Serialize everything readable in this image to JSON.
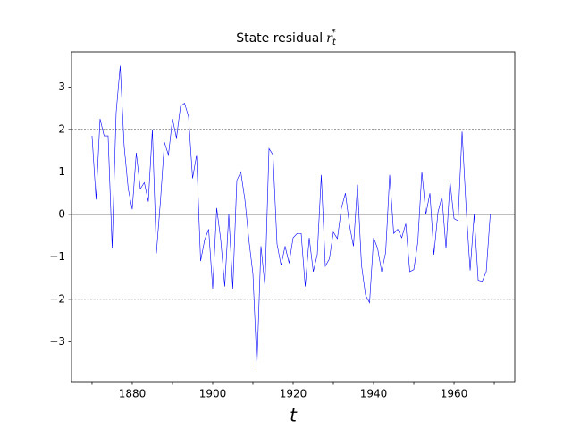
{
  "chart_data": {
    "type": "line",
    "title": "State residual",
    "title_symbol": "r",
    "title_subscript": "t",
    "title_superscript": "*",
    "xlabel": "t",
    "x": [
      1870,
      1871,
      1872,
      1873,
      1874,
      1875,
      1876,
      1877,
      1878,
      1879,
      1880,
      1881,
      1882,
      1883,
      1884,
      1885,
      1886,
      1887,
      1888,
      1889,
      1890,
      1891,
      1892,
      1893,
      1894,
      1895,
      1896,
      1897,
      1898,
      1899,
      1900,
      1901,
      1902,
      1903,
      1904,
      1905,
      1906,
      1907,
      1908,
      1909,
      1910,
      1911,
      1912,
      1913,
      1914,
      1915,
      1916,
      1917,
      1918,
      1919,
      1920,
      1921,
      1922,
      1923,
      1924,
      1925,
      1926,
      1927,
      1928,
      1929,
      1930,
      1931,
      1932,
      1933,
      1934,
      1935,
      1936,
      1937,
      1938,
      1939,
      1940,
      1941,
      1942,
      1943,
      1944,
      1945,
      1946,
      1947,
      1948,
      1949,
      1950,
      1951,
      1952,
      1953,
      1954,
      1955,
      1956,
      1957,
      1958,
      1959,
      1960,
      1961,
      1962,
      1963,
      1964,
      1965,
      1966,
      1967,
      1968,
      1969
    ],
    "series": [
      {
        "name": "r",
        "color": "#0000ff",
        "values": [
          1.85,
          0.35,
          2.25,
          1.85,
          1.85,
          -0.8,
          2.4,
          3.5,
          1.6,
          0.6,
          0.12,
          1.45,
          0.6,
          0.75,
          0.3,
          2.0,
          -0.92,
          0.3,
          1.7,
          1.4,
          2.25,
          1.8,
          2.55,
          2.62,
          2.3,
          0.85,
          1.4,
          -1.1,
          -0.6,
          -0.35,
          -1.75,
          0.15,
          -0.6,
          -1.7,
          0.0,
          -1.75,
          0.8,
          1.0,
          0.35,
          -0.6,
          -1.4,
          -3.58,
          -0.75,
          -1.7,
          1.55,
          1.4,
          -0.7,
          -1.2,
          -0.75,
          -1.15,
          -0.55,
          -0.45,
          -0.45,
          -1.7,
          -0.55,
          -1.35,
          -0.95,
          0.93,
          -1.22,
          -1.05,
          -0.42,
          -0.57,
          0.15,
          0.5,
          -0.25,
          -0.75,
          0.7,
          -1.2,
          -1.9,
          -2.08,
          -0.55,
          -0.8,
          -1.35,
          -0.9,
          0.93,
          -0.45,
          -0.35,
          -0.55,
          -0.22,
          -1.35,
          -1.3,
          -0.65,
          1.0,
          0.0,
          0.5,
          -0.95,
          0.05,
          0.42,
          -0.8,
          0.78,
          -0.1,
          -0.15,
          1.95,
          0.15,
          -1.32,
          0.0,
          -1.55,
          -1.58,
          -1.35,
          0.0
        ]
      }
    ],
    "xlim": [
      1864.9,
      1975.1
    ],
    "ylim": [
      -3.94,
      3.83
    ],
    "xticks": [
      1880,
      1900,
      1920,
      1940,
      1960
    ],
    "xminorticks": [
      1870,
      1890,
      1910,
      1930,
      1950,
      1970
    ],
    "yticks": [
      -3,
      -2,
      -1,
      0,
      1,
      2,
      3
    ],
    "hlines": [
      {
        "y": 0,
        "style": "solid"
      },
      {
        "y": 2,
        "style": "dashed"
      },
      {
        "y": -2,
        "style": "dashed"
      }
    ]
  }
}
